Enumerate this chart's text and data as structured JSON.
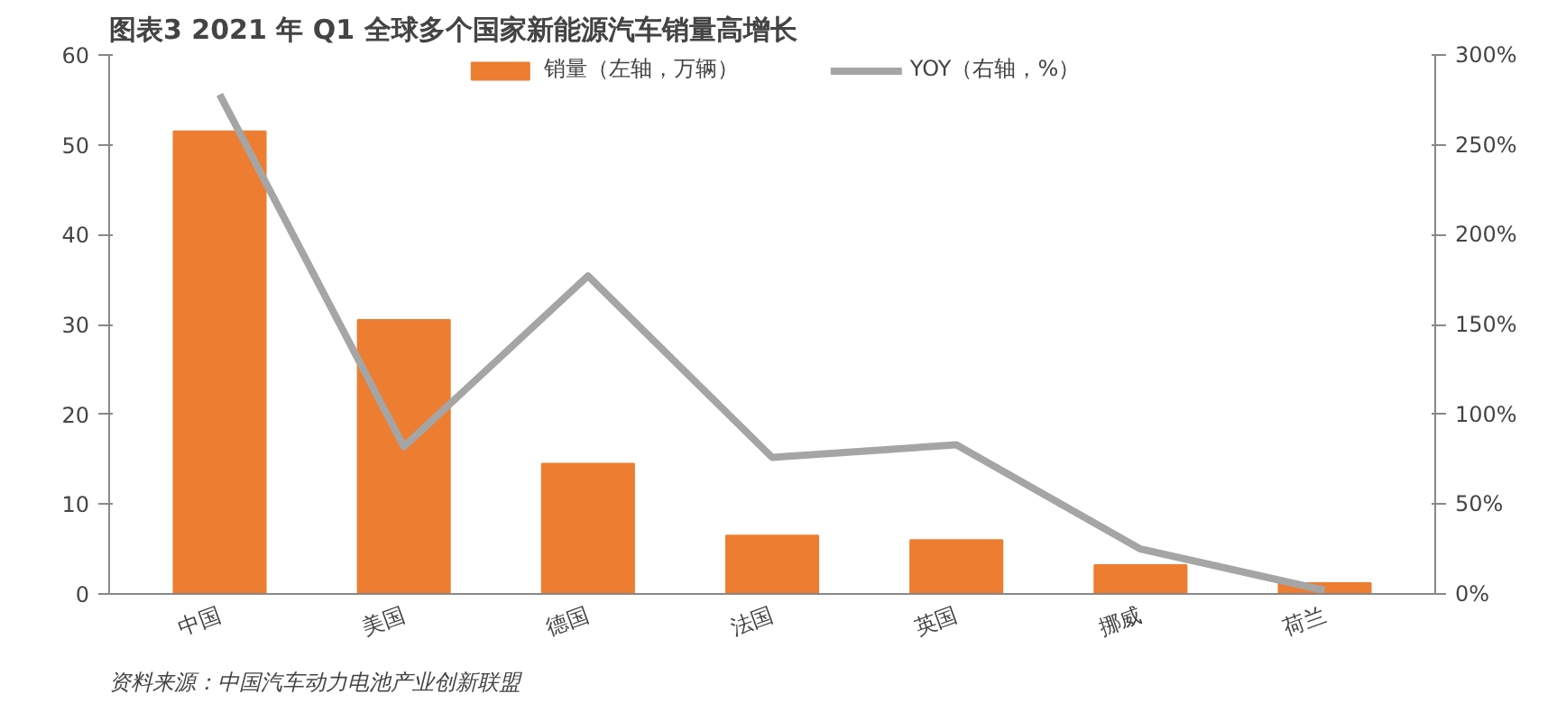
{
  "chart_data": {
    "type": "bar",
    "title": "图表3    2021 年 Q1 全球多个国家新能源汽车销量高增长",
    "categories": [
      "中国",
      "美国",
      "德国",
      "法国",
      "英国",
      "挪威",
      "荷兰"
    ],
    "series": [
      {
        "name": "销量（左轴，万辆）",
        "color": "#ed7d31",
        "values": [
          51.5,
          30.5,
          14.5,
          6.5,
          6,
          3.2,
          1.2
        ]
      },
      {
        "name": "YOY（右轴，%）",
        "type": "line",
        "axis": "y2",
        "color": "#a5a5a5",
        "values": [
          278,
          82,
          177,
          76,
          83,
          25,
          2
        ]
      }
    ],
    "ylim": [
      0,
      60
    ],
    "yticks": [
      0,
      10,
      20,
      30,
      40,
      50,
      60
    ],
    "y2lim": [
      0,
      300
    ],
    "y2ticks": [
      {
        "value": 0,
        "label": "0%"
      },
      {
        "value": 50,
        "label": "50%"
      },
      {
        "value": 100,
        "label": "100%"
      },
      {
        "value": 150,
        "label": "150%"
      },
      {
        "value": 200,
        "label": "200%"
      },
      {
        "value": 250,
        "label": "250%"
      },
      {
        "value": 300,
        "label": "300%"
      }
    ],
    "grid": false,
    "legend": "top",
    "marker": "none",
    "line_style": "solid",
    "annotations": [
      "资料来源：中国汽车动力电池产业创新联盟"
    ]
  }
}
